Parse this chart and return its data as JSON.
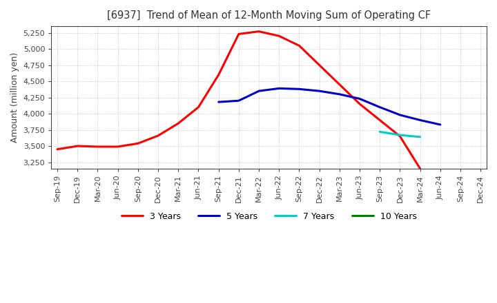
{
  "title": "[6937]  Trend of Mean of 12-Month Moving Sum of Operating CF",
  "ylabel": "Amount (million yen)",
  "ylim": [
    3150,
    5350
  ],
  "yticks": [
    3250,
    3500,
    3750,
    4000,
    4250,
    4500,
    4750,
    5000,
    5250
  ],
  "background_color": "#ffffff",
  "grid_color": "#aaaaaa",
  "x_labels": [
    "Sep-19",
    "Dec-19",
    "Mar-20",
    "Jun-20",
    "Sep-20",
    "Dec-20",
    "Mar-21",
    "Jun-21",
    "Sep-21",
    "Dec-21",
    "Mar-22",
    "Jun-22",
    "Sep-22",
    "Dec-22",
    "Mar-23",
    "Jun-23",
    "Sep-23",
    "Dec-23",
    "Mar-24",
    "Jun-24",
    "Sep-24",
    "Dec-24"
  ],
  "series": {
    "3 Years": {
      "color": "#ff0000",
      "data": [
        3450,
        3500,
        3490,
        3490,
        3540,
        3660,
        3850,
        4100,
        4600,
        5230,
        5270,
        5200,
        5050,
        4750,
        4450,
        4150,
        3900,
        3650,
        3150,
        null,
        null,
        null
      ]
    },
    "5 Years": {
      "color": "#0000cc",
      "data": [
        null,
        null,
        null,
        null,
        null,
        null,
        null,
        null,
        null,
        null,
        null,
        null,
        null,
        null,
        null,
        null,
        null,
        null,
        null,
        null,
        null,
        null
      ]
    },
    "5 Years_actual": {
      "color": "#0000cc",
      "data": [
        null,
        null,
        null,
        null,
        null,
        null,
        null,
        null,
        4180,
        4200,
        4350,
        4390,
        4380,
        4350,
        4300,
        4230,
        4100,
        3980,
        3900,
        3830,
        null,
        null
      ]
    },
    "7 Years": {
      "color": "#00cccc",
      "data": [
        null,
        null,
        null,
        null,
        null,
        null,
        null,
        null,
        null,
        null,
        null,
        null,
        null,
        null,
        null,
        null,
        3720,
        3670,
        3640,
        null,
        null,
        null
      ]
    },
    "10 Years": {
      "color": "#008000",
      "data": [
        null,
        null,
        null,
        null,
        null,
        null,
        null,
        null,
        null,
        null,
        null,
        null,
        null,
        null,
        null,
        null,
        null,
        null,
        null,
        null,
        null,
        null
      ]
    }
  },
  "legend_order": [
    "3 Years",
    "5 Years",
    "7 Years",
    "10 Years"
  ]
}
